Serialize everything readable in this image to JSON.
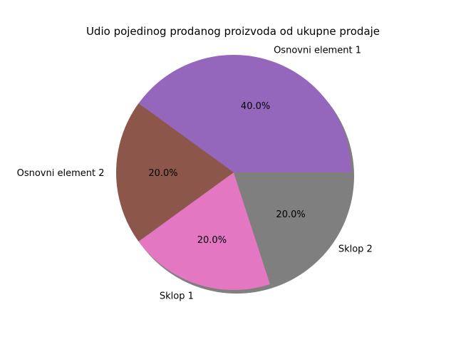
{
  "chart_data": {
    "type": "pie",
    "title": "Udio pojedinog prodanog proizvoda od ukupne prodaje",
    "categories": [
      "Osnovni element 1",
      "Osnovni element 2",
      "Sklop 1",
      "Sklop 2"
    ],
    "values": [
      40.0,
      20.0,
      20.0,
      20.0
    ],
    "percent_labels": [
      "40.0%",
      "20.0%",
      "20.0%",
      "20.0%"
    ],
    "colors": [
      "#9467bd",
      "#8c564b",
      "#e377c2",
      "#7f7f7f"
    ],
    "shadow": true,
    "start_angle_deg": 0,
    "direction": "counterclockwise"
  }
}
